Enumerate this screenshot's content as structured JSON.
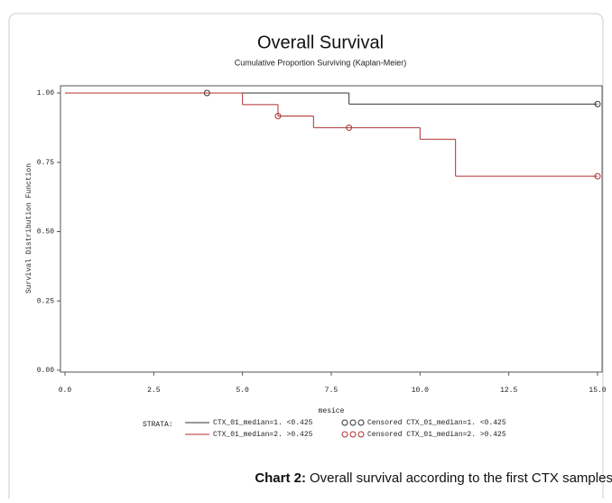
{
  "chart_data": {
    "type": "step",
    "title": "Overall Survival",
    "subtitle": "Cumulative Proportion Surviving (Kaplan-Meier)",
    "x_label": "mesice",
    "y_label": "Survival Distribution Function",
    "xlim": [
      0,
      15
    ],
    "ylim": [
      0,
      1
    ],
    "xticks": [
      {
        "value": 0,
        "label": "0.0"
      },
      2.5,
      {
        "value": 5,
        "label": "5.0"
      },
      7.5,
      {
        "value": 10,
        "label": "10.0"
      },
      12.5,
      {
        "value": 15,
        "label": "15.0"
      }
    ],
    "yticks": [
      {
        "value": 0,
        "label": "0.00"
      },
      {
        "value": 0.25,
        "label": "0.25"
      },
      {
        "value": 0.5,
        "label": "0.50"
      },
      {
        "value": 0.75,
        "label": "0.75"
      },
      {
        "value": 1,
        "label": "1.00"
      }
    ],
    "legend_title": "STRATA:",
    "series": [
      {
        "name": "CTX_01_median=1. <0.425",
        "color": "#333333",
        "x": [
          0,
          8,
          15
        ],
        "values": [
          1,
          0.96,
          0.96
        ],
        "censored": {
          "name": "Censored CTX_01_median=1. <0.425",
          "x": [
            4,
            15
          ],
          "values": [
            1,
            0.96
          ]
        }
      },
      {
        "name": "CTX_01_median=2. >0.425",
        "color": "#b03030",
        "x": [
          0,
          5,
          6,
          7,
          10,
          11,
          15
        ],
        "values": [
          1,
          0.958,
          0.917,
          0.875,
          0.833,
          0.7,
          0.7
        ],
        "censored": {
          "name": "Censored CTX_01_median=2. >0.425",
          "x": [
            6,
            8,
            15
          ],
          "values": [
            0.917,
            0.875,
            0.7
          ]
        }
      }
    ]
  },
  "caption": {
    "label": "Chart 2:",
    "text": "Overall survival according to the first CTX samples."
  }
}
